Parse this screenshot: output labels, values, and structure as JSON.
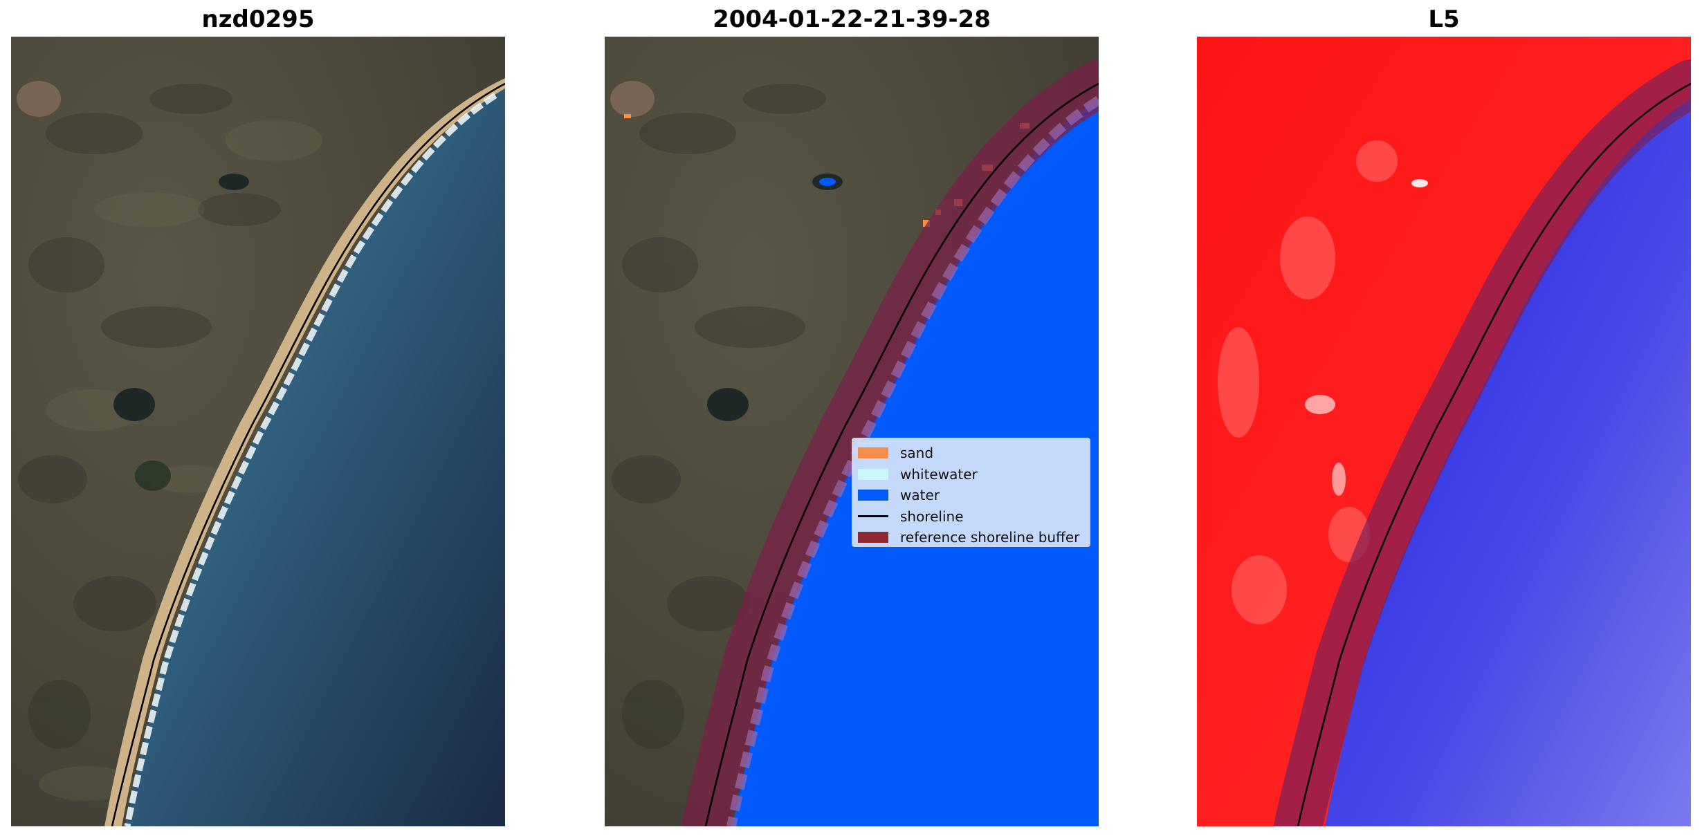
{
  "panels": [
    {
      "title": "nzd0295"
    },
    {
      "title": "2004-01-22-21-39-28"
    },
    {
      "title": "L5"
    }
  ],
  "legend": {
    "items": [
      {
        "label": "sand",
        "color": "#f58e48",
        "kind": "patch"
      },
      {
        "label": "whitewater",
        "color": "#c9f7fb",
        "kind": "patch"
      },
      {
        "label": "water",
        "color": "#0059fb",
        "kind": "patch"
      },
      {
        "label": "shoreline",
        "color": "#000000",
        "kind": "line"
      },
      {
        "label": "reference shoreline buffer",
        "color": "#8e2a33",
        "kind": "patch"
      }
    ]
  },
  "colors": {
    "land": "#4a4a3a",
    "ocean_shallow": "#3f7e98",
    "ocean_deep": "#1f3350",
    "sand": "#d6bc8c",
    "classified_water": "#0059fb",
    "buffer": "#7a2040",
    "index_land": "#ff1a1a",
    "index_water": "#2a2ae6"
  }
}
